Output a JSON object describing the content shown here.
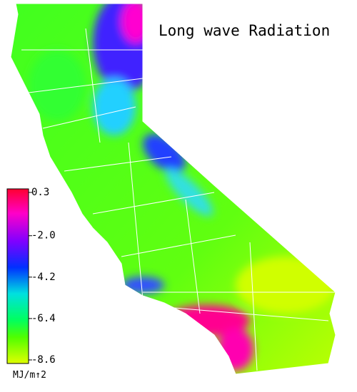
{
  "title": "Long wave Radiation",
  "colorbar": {
    "range": [
      -8.6,
      0.3
    ],
    "ticks": [
      {
        "value": 0.3,
        "label": "0.3"
      },
      {
        "value": -2.0,
        "label": "-2.0"
      },
      {
        "value": -4.2,
        "label": "-4.2"
      },
      {
        "value": -6.4,
        "label": "-6.4"
      },
      {
        "value": -8.6,
        "label": "-8.6"
      }
    ],
    "unit": "MJ/m↑2"
  }
}
